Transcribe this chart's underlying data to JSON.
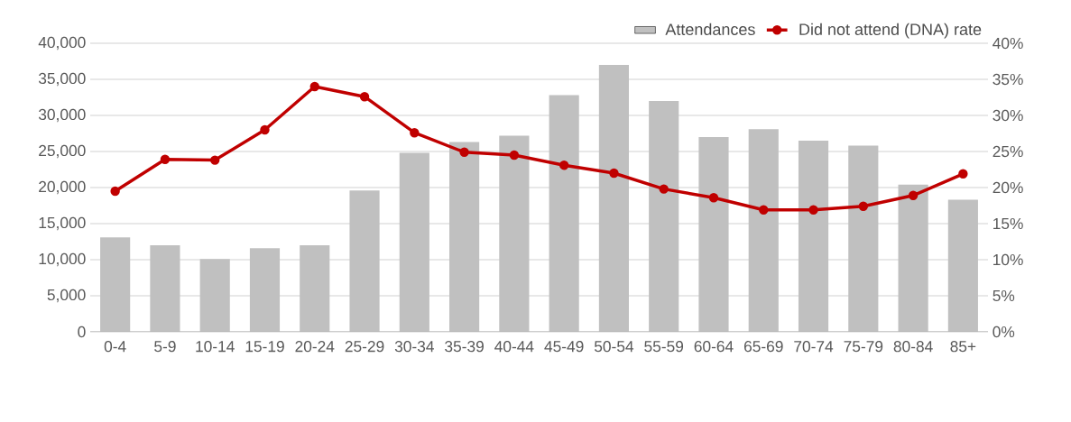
{
  "chart_data": {
    "type": "bar",
    "categories": [
      "0-4",
      "5-9",
      "10-14",
      "15-19",
      "20-24",
      "25-29",
      "30-34",
      "35-39",
      "40-44",
      "45-49",
      "50-54",
      "55-59",
      "60-64",
      "65-69",
      "70-74",
      "75-79",
      "80-84",
      "85+"
    ],
    "series": [
      {
        "name": "Attendances",
        "color": "#c0c0c0",
        "values": [
          13100,
          12000,
          10100,
          11600,
          12000,
          19600,
          24800,
          26300,
          27200,
          32800,
          37000,
          32000,
          27000,
          28100,
          26500,
          25800,
          20400,
          18300
        ]
      },
      {
        "name": "Did not attend (DNA) rate",
        "type": "line",
        "axis": "y2",
        "color": "#c00000",
        "marker": "circle",
        "line_style": "solid",
        "values": [
          19.5,
          23.9,
          23.8,
          28,
          34,
          32.6,
          27.6,
          24.9,
          24.5,
          23.1,
          22,
          19.8,
          18.6,
          16.9,
          16.9,
          17.4,
          18.9,
          21.9
        ]
      }
    ],
    "ylim": [
      0,
      40000
    ],
    "yticks": [
      {
        "value": 0,
        "label": "0"
      },
      {
        "value": 5000,
        "label": "5,000"
      },
      {
        "value": 10000,
        "label": "10,000"
      },
      {
        "value": 15000,
        "label": "15,000"
      },
      {
        "value": 20000,
        "label": "20,000"
      },
      {
        "value": 25000,
        "label": "25,000"
      },
      {
        "value": 30000,
        "label": "30,000"
      },
      {
        "value": 35000,
        "label": "35,000"
      },
      {
        "value": 40000,
        "label": "40,000"
      }
    ],
    "y2lim": [
      0,
      40
    ],
    "y2ticks": [
      {
        "value": 0,
        "label": "0%"
      },
      {
        "value": 5,
        "label": "5%"
      },
      {
        "value": 10,
        "label": "10%"
      },
      {
        "value": 15,
        "label": "15%"
      },
      {
        "value": 20,
        "label": "20%"
      },
      {
        "value": 25,
        "label": "25%"
      },
      {
        "value": 30,
        "label": "30%"
      },
      {
        "value": 35,
        "label": "35%"
      },
      {
        "value": 40,
        "label": "40%"
      }
    ],
    "grid": "y",
    "legend": "top right"
  }
}
